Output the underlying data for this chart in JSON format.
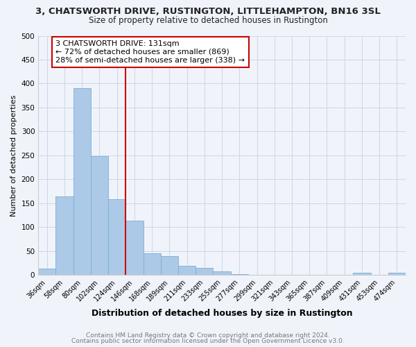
{
  "title_line1": "3, CHATSWORTH DRIVE, RUSTINGTON, LITTLEHAMPTON, BN16 3SL",
  "title_line2": "Size of property relative to detached houses in Rustington",
  "xlabel": "Distribution of detached houses by size in Rustington",
  "ylabel": "Number of detached properties",
  "bar_labels": [
    "36sqm",
    "58sqm",
    "80sqm",
    "102sqm",
    "124sqm",
    "146sqm",
    "168sqm",
    "189sqm",
    "211sqm",
    "233sqm",
    "255sqm",
    "277sqm",
    "299sqm",
    "321sqm",
    "343sqm",
    "365sqm",
    "387sqm",
    "409sqm",
    "431sqm",
    "453sqm",
    "474sqm"
  ],
  "bar_values": [
    14,
    165,
    390,
    248,
    158,
    114,
    45,
    40,
    20,
    15,
    7,
    2,
    1,
    0,
    0,
    0,
    0,
    0,
    5,
    0,
    5
  ],
  "bar_color": "#adc9e8",
  "bar_edge_color": "#7aafd4",
  "annotation_title": "3 CHATSWORTH DRIVE: 131sqm",
  "annotation_line1": "← 72% of detached houses are smaller (869)",
  "annotation_line2": "28% of semi-detached houses are larger (338) →",
  "ylim": [
    0,
    500
  ],
  "yticks": [
    0,
    50,
    100,
    150,
    200,
    250,
    300,
    350,
    400,
    450,
    500
  ],
  "footer_line1": "Contains HM Land Registry data © Crown copyright and database right 2024.",
  "footer_line2": "Contains public sector information licensed under the Open Government Licence v3.0.",
  "bg_color": "#f0f4fa",
  "plot_bg_color": "#f0f4fa",
  "annotation_box_color": "#ffffff",
  "annotation_box_edge": "#cc0000",
  "vline_color": "#cc0000",
  "grid_color": "#d0d8e8",
  "title_fontsize": 9.5,
  "subtitle_fontsize": 8.5,
  "xlabel_fontsize": 9,
  "ylabel_fontsize": 8,
  "tick_fontsize": 7,
  "footer_fontsize": 6.5
}
